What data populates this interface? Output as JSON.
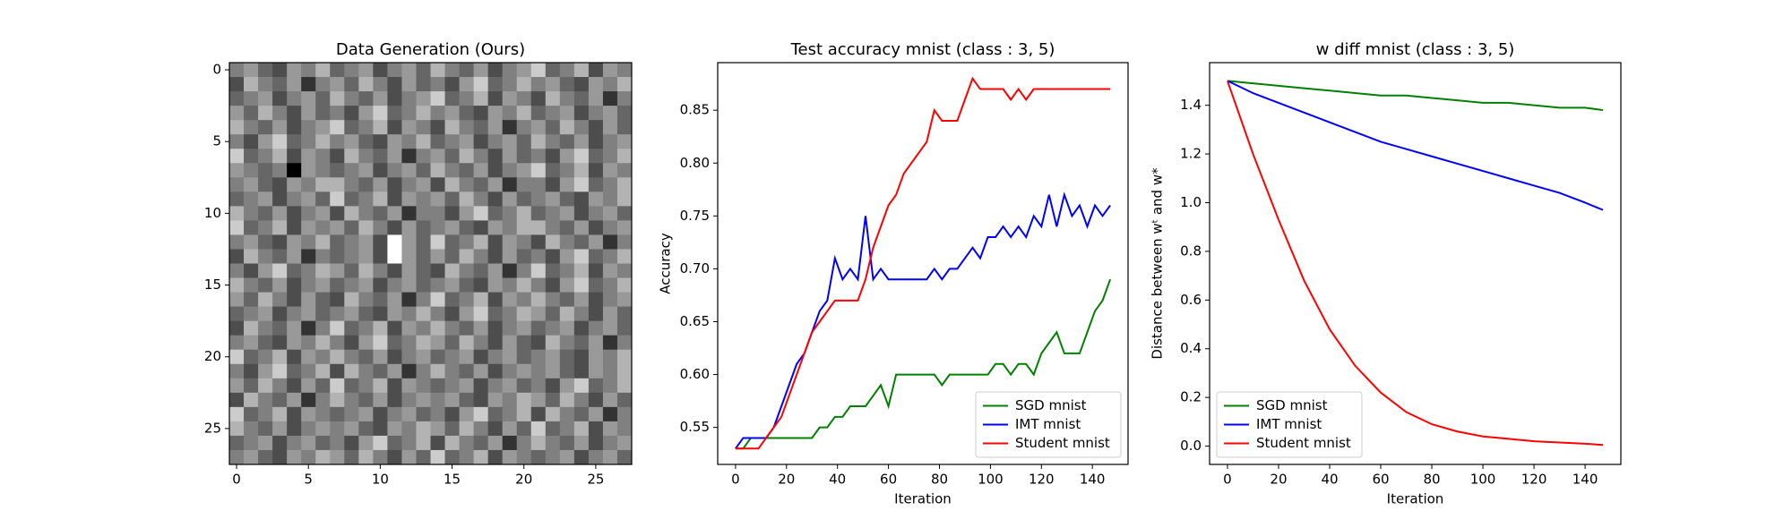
{
  "chart_data": [
    {
      "type": "heatmap",
      "title": "Data Generation (Ours)",
      "cmap": "gray",
      "xlim": [
        -0.5,
        27.5
      ],
      "ylim": [
        27.5,
        -0.5
      ],
      "xticks": [
        0,
        5,
        10,
        15,
        20,
        25
      ],
      "yticks": [
        0,
        5,
        10,
        15,
        20,
        25
      ],
      "values": [
        [
          0.5,
          0.6,
          0.4,
          0.3,
          0.6,
          0.5,
          0.7,
          0.4,
          0.5,
          0.6,
          0.3,
          0.5,
          0.6,
          0.4,
          0.7,
          0.5,
          0.4,
          0.6,
          0.3,
          0.5,
          0.6,
          0.8,
          0.4,
          0.5,
          0.7,
          0.3,
          0.6,
          0.5
        ],
        [
          0.3,
          0.7,
          0.5,
          0.4,
          0.6,
          0.2,
          0.5,
          0.6,
          0.4,
          0.7,
          0.5,
          0.3,
          0.6,
          0.4,
          0.5,
          0.3,
          0.6,
          0.8,
          0.4,
          0.5,
          0.7,
          0.5,
          0.6,
          0.4,
          0.3,
          0.6,
          0.5,
          0.7
        ],
        [
          0.4,
          0.5,
          0.6,
          0.3,
          0.5,
          0.6,
          0.4,
          0.7,
          0.5,
          0.4,
          0.6,
          0.3,
          0.5,
          0.6,
          0.8,
          0.4,
          0.5,
          0.7,
          0.3,
          0.6,
          0.5,
          0.3,
          0.7,
          0.5,
          0.4,
          0.6,
          0.2,
          0.5
        ],
        [
          0.6,
          0.4,
          0.7,
          0.5,
          0.3,
          0.6,
          0.4,
          0.5,
          0.3,
          0.6,
          0.8,
          0.4,
          0.5,
          0.7,
          0.5,
          0.6,
          0.4,
          0.3,
          0.6,
          0.5,
          0.7,
          0.4,
          0.5,
          0.6,
          0.3,
          0.5,
          0.6,
          0.4
        ],
        [
          0.7,
          0.5,
          0.4,
          0.6,
          0.3,
          0.5,
          0.6,
          0.8,
          0.4,
          0.5,
          0.7,
          0.3,
          0.6,
          0.5,
          0.3,
          0.7,
          0.5,
          0.4,
          0.6,
          0.2,
          0.5,
          0.6,
          0.4,
          0.7,
          0.5,
          0.3,
          0.6,
          0.4
        ],
        [
          0.5,
          0.3,
          0.6,
          0.8,
          0.4,
          0.5,
          0.7,
          0.5,
          0.6,
          0.4,
          0.3,
          0.6,
          0.5,
          0.7,
          0.4,
          0.5,
          0.6,
          0.3,
          0.5,
          0.6,
          0.4,
          0.7,
          0.5,
          0.4,
          0.6,
          0.3,
          0.5,
          0.6
        ],
        [
          0.8,
          0.4,
          0.5,
          0.7,
          0.3,
          0.6,
          0.5,
          0.3,
          0.7,
          0.5,
          0.4,
          0.6,
          0.2,
          0.5,
          0.6,
          0.4,
          0.7,
          0.5,
          0.3,
          0.6,
          0.4,
          0.5,
          0.3,
          0.6,
          0.8,
          0.4,
          0.5,
          0.7
        ],
        [
          0.6,
          0.5,
          0.4,
          0.5,
          0.0,
          0.6,
          0.5,
          0.4,
          0.5,
          0.6,
          0.3,
          0.5,
          0.6,
          0.4,
          0.7,
          0.5,
          0.4,
          0.6,
          0.3,
          0.5,
          0.6,
          0.8,
          0.4,
          0.5,
          0.7,
          0.3,
          0.6,
          0.5
        ],
        [
          0.5,
          0.6,
          0.4,
          0.3,
          0.6,
          0.5,
          0.7,
          0.7,
          0.5,
          0.4,
          0.6,
          0.3,
          0.5,
          0.6,
          0.3,
          0.7,
          0.5,
          0.4,
          0.6,
          0.2,
          0.5,
          0.5,
          0.3,
          0.6,
          0.8,
          0.4,
          0.5,
          0.7
        ],
        [
          0.4,
          0.5,
          0.6,
          0.3,
          0.5,
          0.6,
          0.4,
          0.8,
          0.4,
          0.5,
          0.7,
          0.3,
          0.6,
          0.5,
          0.6,
          0.4,
          0.7,
          0.5,
          0.3,
          0.6,
          0.4,
          0.5,
          0.6,
          0.4,
          0.3,
          0.6,
          0.5,
          0.7
        ],
        [
          0.7,
          0.5,
          0.4,
          0.6,
          0.3,
          0.5,
          0.6,
          0.3,
          0.7,
          0.5,
          0.4,
          0.6,
          0.2,
          0.5,
          0.5,
          0.3,
          0.6,
          0.8,
          0.4,
          0.5,
          0.7,
          0.4,
          0.5,
          0.6,
          0.3,
          0.5,
          0.6,
          0.4
        ],
        [
          0.8,
          0.4,
          0.5,
          0.7,
          0.3,
          0.6,
          0.5,
          0.6,
          0.4,
          0.7,
          0.5,
          0.3,
          0.6,
          0.4,
          0.5,
          0.6,
          0.4,
          0.3,
          0.6,
          0.5,
          0.7,
          0.7,
          0.5,
          0.4,
          0.6,
          0.3,
          0.5,
          0.6
        ],
        [
          0.5,
          0.6,
          0.4,
          0.3,
          0.6,
          0.5,
          0.7,
          0.4,
          0.5,
          0.6,
          0.3,
          1.0,
          0.6,
          0.4,
          0.8,
          0.4,
          0.5,
          0.7,
          0.3,
          0.6,
          0.5,
          0.3,
          0.7,
          0.5,
          0.4,
          0.6,
          0.2,
          0.5
        ],
        [
          0.3,
          0.7,
          0.5,
          0.4,
          0.6,
          0.2,
          0.5,
          0.4,
          0.5,
          0.6,
          0.3,
          1.0,
          0.6,
          0.4,
          0.6,
          0.4,
          0.7,
          0.5,
          0.3,
          0.6,
          0.4,
          0.5,
          0.3,
          0.6,
          0.8,
          0.4,
          0.5,
          0.7
        ],
        [
          0.5,
          0.3,
          0.6,
          0.8,
          0.4,
          0.5,
          0.7,
          0.6,
          0.4,
          0.7,
          0.5,
          0.3,
          0.6,
          0.4,
          0.3,
          0.7,
          0.5,
          0.4,
          0.6,
          0.2,
          0.5,
          0.8,
          0.4,
          0.5,
          0.7,
          0.3,
          0.6,
          0.5
        ],
        [
          0.7,
          0.5,
          0.4,
          0.6,
          0.3,
          0.5,
          0.6,
          0.4,
          0.5,
          0.6,
          0.3,
          0.5,
          0.6,
          0.4,
          0.5,
          0.6,
          0.4,
          0.3,
          0.6,
          0.5,
          0.7,
          0.5,
          0.3,
          0.6,
          0.8,
          0.4,
          0.5,
          0.7
        ],
        [
          0.6,
          0.4,
          0.7,
          0.5,
          0.3,
          0.6,
          0.4,
          0.3,
          0.7,
          0.5,
          0.4,
          0.6,
          0.2,
          0.5,
          0.8,
          0.4,
          0.5,
          0.7,
          0.3,
          0.6,
          0.5,
          0.7,
          0.5,
          0.4,
          0.6,
          0.3,
          0.5,
          0.6
        ],
        [
          0.4,
          0.5,
          0.6,
          0.3,
          0.5,
          0.6,
          0.4,
          0.5,
          0.6,
          0.4,
          0.3,
          0.6,
          0.5,
          0.7,
          0.5,
          0.3,
          0.6,
          0.8,
          0.4,
          0.5,
          0.7,
          0.6,
          0.4,
          0.7,
          0.5,
          0.3,
          0.6,
          0.4
        ],
        [
          0.3,
          0.7,
          0.5,
          0.4,
          0.6,
          0.2,
          0.5,
          0.8,
          0.4,
          0.5,
          0.7,
          0.3,
          0.6,
          0.5,
          0.7,
          0.5,
          0.4,
          0.6,
          0.3,
          0.5,
          0.6,
          0.4,
          0.5,
          0.6,
          0.3,
          0.5,
          0.6,
          0.4
        ],
        [
          0.5,
          0.6,
          0.4,
          0.3,
          0.6,
          0.5,
          0.7,
          0.5,
          0.3,
          0.6,
          0.8,
          0.4,
          0.5,
          0.7,
          0.6,
          0.4,
          0.7,
          0.5,
          0.3,
          0.6,
          0.4,
          0.3,
          0.7,
          0.5,
          0.4,
          0.6,
          0.2,
          0.5
        ],
        [
          0.8,
          0.4,
          0.5,
          0.7,
          0.3,
          0.6,
          0.5,
          0.7,
          0.5,
          0.4,
          0.6,
          0.3,
          0.5,
          0.6,
          0.4,
          0.5,
          0.6,
          0.3,
          0.5,
          0.6,
          0.4,
          0.5,
          0.6,
          0.4,
          0.3,
          0.6,
          0.5,
          0.7
        ],
        [
          0.5,
          0.3,
          0.6,
          0.8,
          0.4,
          0.5,
          0.7,
          0.3,
          0.7,
          0.5,
          0.4,
          0.6,
          0.2,
          0.5,
          0.7,
          0.5,
          0.4,
          0.6,
          0.3,
          0.5,
          0.6,
          0.5,
          0.6,
          0.4,
          0.3,
          0.6,
          0.5,
          0.7
        ],
        [
          0.6,
          0.4,
          0.7,
          0.5,
          0.3,
          0.6,
          0.4,
          0.8,
          0.4,
          0.5,
          0.7,
          0.3,
          0.6,
          0.5,
          0.4,
          0.5,
          0.6,
          0.3,
          0.5,
          0.6,
          0.4,
          0.5,
          0.3,
          0.6,
          0.8,
          0.4,
          0.5,
          0.7
        ],
        [
          0.3,
          0.7,
          0.5,
          0.4,
          0.6,
          0.2,
          0.5,
          0.7,
          0.5,
          0.4,
          0.6,
          0.3,
          0.5,
          0.6,
          0.5,
          0.6,
          0.4,
          0.3,
          0.6,
          0.5,
          0.7,
          0.6,
          0.4,
          0.7,
          0.5,
          0.3,
          0.6,
          0.4
        ],
        [
          0.8,
          0.4,
          0.5,
          0.7,
          0.3,
          0.6,
          0.5,
          0.4,
          0.5,
          0.6,
          0.3,
          0.5,
          0.6,
          0.4,
          0.5,
          0.3,
          0.6,
          0.8,
          0.4,
          0.5,
          0.7,
          0.3,
          0.7,
          0.5,
          0.4,
          0.6,
          0.2,
          0.5
        ],
        [
          0.7,
          0.5,
          0.4,
          0.6,
          0.3,
          0.5,
          0.6,
          0.5,
          0.6,
          0.4,
          0.3,
          0.6,
          0.5,
          0.7,
          0.6,
          0.4,
          0.7,
          0.5,
          0.3,
          0.6,
          0.4,
          0.8,
          0.4,
          0.5,
          0.7,
          0.3,
          0.6,
          0.5
        ],
        [
          0.4,
          0.5,
          0.6,
          0.3,
          0.5,
          0.6,
          0.4,
          0.5,
          0.3,
          0.6,
          0.8,
          0.4,
          0.5,
          0.7,
          0.3,
          0.7,
          0.5,
          0.4,
          0.6,
          0.2,
          0.5,
          0.7,
          0.5,
          0.4,
          0.6,
          0.3,
          0.5,
          0.6
        ],
        [
          0.5,
          0.6,
          0.4,
          0.3,
          0.6,
          0.5,
          0.7,
          0.6,
          0.4,
          0.7,
          0.5,
          0.3,
          0.6,
          0.4,
          0.8,
          0.4,
          0.5,
          0.7,
          0.3,
          0.6,
          0.5,
          0.4,
          0.5,
          0.6,
          0.3,
          0.5,
          0.6,
          0.4
        ]
      ]
    },
    {
      "type": "line",
      "title": "Test accuracy mnist (class : 3, 5)",
      "xlabel": "Iteration",
      "ylabel": "Accuracy",
      "xlim": [
        -7,
        154
      ],
      "ylim": [
        0.515,
        0.895
      ],
      "xticks": [
        0,
        20,
        40,
        60,
        80,
        100,
        120,
        140
      ],
      "yticks": [
        0.55,
        {
          "value": 0.6,
          "label": "0.60"
        },
        0.65,
        {
          "value": 0.7,
          "label": "0.70"
        },
        0.75,
        {
          "value": 0.8,
          "label": "0.80"
        },
        0.85
      ],
      "legend": "lower right",
      "x": [
        0,
        3,
        6,
        9,
        12,
        15,
        18,
        21,
        24,
        27,
        30,
        33,
        36,
        39,
        42,
        45,
        48,
        51,
        54,
        57,
        60,
        63,
        66,
        69,
        72,
        75,
        78,
        81,
        84,
        87,
        90,
        93,
        96,
        99,
        102,
        105,
        108,
        111,
        114,
        117,
        120,
        123,
        126,
        129,
        132,
        135,
        138,
        141,
        144,
        147
      ],
      "series": [
        {
          "name": "SGD mnist",
          "color": "#008000",
          "values": [
            0.53,
            0.53,
            0.54,
            0.54,
            0.54,
            0.54,
            0.54,
            0.54,
            0.54,
            0.54,
            0.54,
            0.55,
            0.55,
            0.56,
            0.56,
            0.57,
            0.57,
            0.57,
            0.58,
            0.59,
            0.57,
            0.6,
            0.6,
            0.6,
            0.6,
            0.6,
            0.6,
            0.59,
            0.6,
            0.6,
            0.6,
            0.6,
            0.6,
            0.6,
            0.61,
            0.61,
            0.6,
            0.61,
            0.61,
            0.6,
            0.62,
            0.63,
            0.64,
            0.62,
            0.62,
            0.62,
            0.64,
            0.66,
            0.67,
            0.69
          ]
        },
        {
          "name": "IMT mnist",
          "color": "#0000ff",
          "values": [
            0.53,
            0.54,
            0.54,
            0.54,
            0.54,
            0.55,
            0.57,
            0.59,
            0.61,
            0.62,
            0.64,
            0.66,
            0.67,
            0.71,
            0.69,
            0.7,
            0.69,
            0.75,
            0.69,
            0.7,
            0.69,
            0.69,
            0.69,
            0.69,
            0.69,
            0.69,
            0.7,
            0.69,
            0.7,
            0.7,
            0.71,
            0.72,
            0.71,
            0.73,
            0.73,
            0.74,
            0.73,
            0.74,
            0.73,
            0.75,
            0.74,
            0.77,
            0.74,
            0.77,
            0.75,
            0.76,
            0.74,
            0.76,
            0.75,
            0.76
          ]
        },
        {
          "name": "Student mnist",
          "color": "#ff0000",
          "values": [
            0.53,
            0.53,
            0.53,
            0.53,
            0.54,
            0.55,
            0.56,
            0.58,
            0.6,
            0.62,
            0.64,
            0.65,
            0.66,
            0.67,
            0.67,
            0.67,
            0.67,
            0.69,
            0.72,
            0.74,
            0.76,
            0.77,
            0.79,
            0.8,
            0.81,
            0.82,
            0.85,
            0.84,
            0.84,
            0.84,
            0.86,
            0.88,
            0.87,
            0.87,
            0.87,
            0.87,
            0.86,
            0.87,
            0.86,
            0.87,
            0.87,
            0.87,
            0.87,
            0.87,
            0.87,
            0.87,
            0.87,
            0.87,
            0.87,
            0.87
          ]
        }
      ]
    },
    {
      "type": "line",
      "title": "w diff mnist (class : 3, 5)",
      "xlabel": "Iteration",
      "ylabel": "Distance between wᵗ and w*",
      "xlim": [
        -7,
        154
      ],
      "ylim": [
        -0.075,
        1.575
      ],
      "xticks": [
        0,
        20,
        40,
        60,
        80,
        100,
        120,
        140
      ],
      "yticks": [
        {
          "value": 0,
          "label": "0.0"
        },
        0.2,
        0.4,
        0.6,
        0.8,
        {
          "value": 1,
          "label": "1.0"
        },
        1.2,
        1.4
      ],
      "legend": "lower left",
      "x": [
        0,
        10,
        20,
        30,
        40,
        50,
        60,
        70,
        80,
        90,
        100,
        110,
        120,
        130,
        140,
        147
      ],
      "series": [
        {
          "name": "SGD mnist",
          "color": "#008000",
          "values": [
            1.5,
            1.49,
            1.48,
            1.47,
            1.46,
            1.45,
            1.44,
            1.44,
            1.43,
            1.42,
            1.41,
            1.41,
            1.4,
            1.39,
            1.39,
            1.38
          ]
        },
        {
          "name": "IMT mnist",
          "color": "#0000ff",
          "values": [
            1.5,
            1.45,
            1.41,
            1.37,
            1.33,
            1.29,
            1.25,
            1.22,
            1.19,
            1.16,
            1.13,
            1.1,
            1.07,
            1.04,
            1.0,
            0.97
          ]
        },
        {
          "name": "Student mnist",
          "color": "#ff0000",
          "values": [
            1.5,
            1.2,
            0.93,
            0.68,
            0.48,
            0.33,
            0.22,
            0.14,
            0.09,
            0.06,
            0.04,
            0.03,
            0.02,
            0.015,
            0.01,
            0.005
          ]
        }
      ]
    }
  ]
}
